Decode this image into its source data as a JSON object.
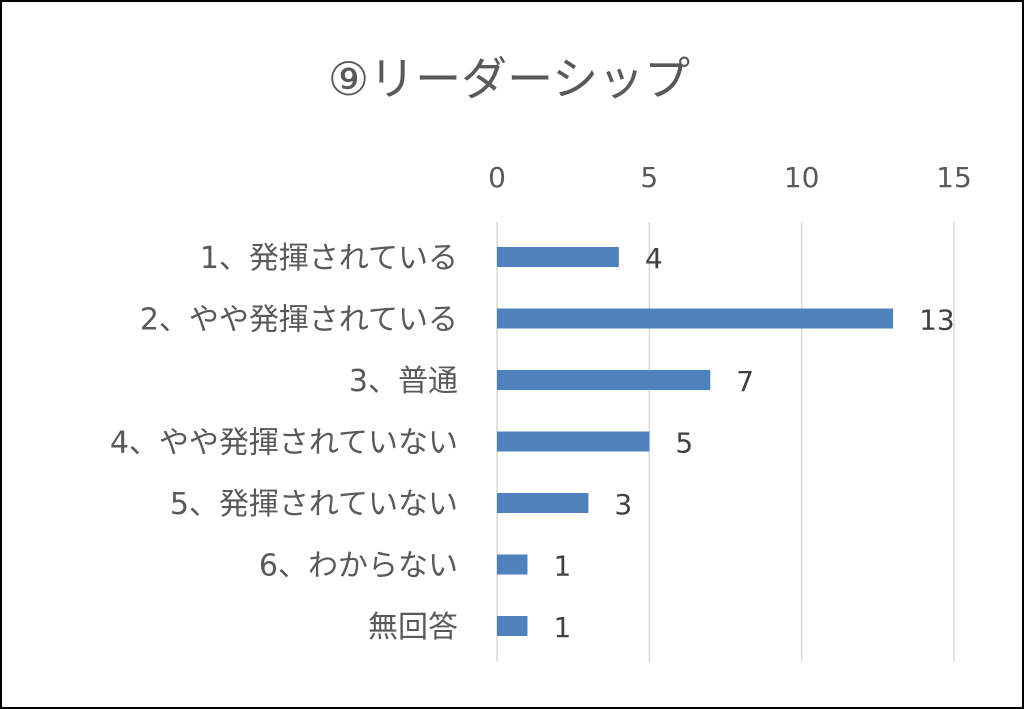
{
  "chart_data": {
    "type": "bar",
    "orientation": "horizontal",
    "title": "⑨リーダーシップ",
    "categories": [
      "1、発揮されている",
      "2、やや発揮されている",
      "3、普通",
      "4、やや発揮されていない",
      "5、発揮されていない",
      "6、わからない",
      "無回答"
    ],
    "values": [
      4,
      13,
      7,
      5,
      3,
      1,
      1
    ],
    "xlim": [
      0,
      15
    ],
    "x_ticks": [
      "0",
      "5",
      "10",
      "15"
    ],
    "x_tick_values": [
      0,
      5,
      10,
      15
    ],
    "x_axis_position": "top",
    "grid": true,
    "legend": "none",
    "data_labels": true,
    "colors": {
      "bar": "#4f81bd",
      "grid": "#d9d9d9",
      "text": "#595959",
      "border": "#000000"
    }
  }
}
